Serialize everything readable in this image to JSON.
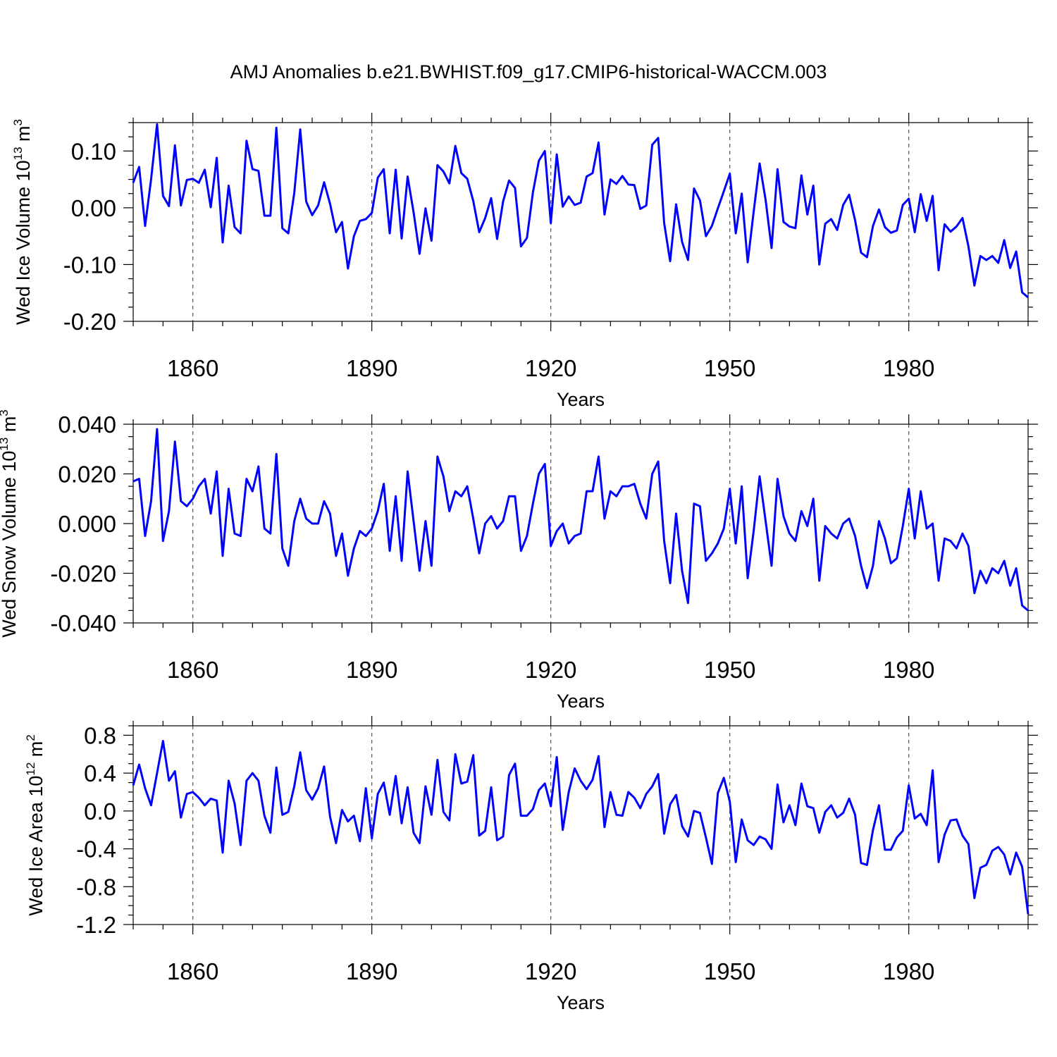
{
  "title": "AMJ Anomalies b.e21.BWHIST.f09_g17.CMIP6-historical-WACCM.003",
  "colors": {
    "line": "#0000ff",
    "axis": "#000000",
    "grid": "#555555"
  },
  "chart_data": [
    {
      "type": "line",
      "name": "ice-volume",
      "title": "",
      "xlabel": "Years",
      "ylabel": "Wed Ice Volume 10",
      "ylabel_exp": "13",
      "ylabel_unit": "m",
      "ylabel_unit_exp": "3",
      "xlim": [
        1850,
        2000
      ],
      "ylim": [
        -0.2,
        0.15
      ],
      "x_ticks": [
        1860,
        1890,
        1920,
        1950,
        1980
      ],
      "x_tick_labels": [
        "1860",
        "1890",
        "1920",
        "1950",
        "1980"
      ],
      "y_ticks": [
        0.1,
        0.0,
        -0.1,
        -0.2
      ],
      "y_tick_labels": [
        "0.10",
        "0.00",
        "-0.10",
        "-0.20"
      ],
      "x_start": 1850,
      "values": [
        0.044,
        0.072,
        -0.032,
        0.05,
        0.147,
        0.021,
        0.003,
        0.11,
        0.004,
        0.049,
        0.051,
        0.044,
        0.067,
        0.001,
        0.088,
        -0.061,
        0.039,
        -0.034,
        -0.045,
        0.118,
        0.068,
        0.065,
        -0.014,
        -0.014,
        0.141,
        -0.036,
        -0.045,
        0.026,
        0.138,
        0.011,
        -0.013,
        0.004,
        0.045,
        0.007,
        -0.043,
        -0.025,
        -0.107,
        -0.05,
        -0.023,
        -0.02,
        -0.009,
        0.053,
        0.068,
        -0.045,
        0.067,
        -0.054,
        0.055,
        -0.008,
        -0.081,
        -0.001,
        -0.058,
        0.075,
        0.064,
        0.043,
        0.109,
        0.061,
        0.051,
        0.012,
        -0.043,
        -0.018,
        0.017,
        -0.055,
        0.011,
        0.048,
        0.035,
        -0.068,
        -0.053,
        0.027,
        0.083,
        0.1,
        -0.027,
        0.094,
        0.002,
        0.02,
        0.005,
        0.009,
        0.055,
        0.061,
        0.115,
        -0.012,
        0.05,
        0.042,
        0.056,
        0.041,
        0.04,
        -0.002,
        0.004,
        0.111,
        0.123,
        -0.027,
        -0.094,
        0.006,
        -0.06,
        -0.092,
        0.034,
        0.013,
        -0.05,
        -0.032,
        -0.001,
        0.029,
        0.06,
        -0.045,
        0.025,
        -0.096,
        -0.007,
        0.078,
        0.014,
        -0.071,
        0.068,
        -0.025,
        -0.033,
        -0.036,
        0.057,
        -0.012,
        0.039,
        -0.1,
        -0.028,
        -0.02,
        -0.039,
        0.005,
        0.023,
        -0.022,
        -0.079,
        -0.087,
        -0.032,
        -0.003,
        -0.034,
        -0.044,
        -0.04,
        0.005,
        0.016,
        -0.043,
        0.024,
        -0.023,
        0.021,
        -0.11,
        -0.029,
        -0.042,
        -0.033,
        -0.018,
        -0.068,
        -0.137,
        -0.085,
        -0.092,
        -0.085,
        -0.097,
        -0.057,
        -0.106,
        -0.077,
        -0.149,
        -0.158
      ]
    },
    {
      "type": "line",
      "name": "snow-volume",
      "title": "",
      "xlabel": "Years",
      "ylabel": "Wed Snow Volume 10",
      "ylabel_exp": "13",
      "ylabel_unit": "m",
      "ylabel_unit_exp": "3",
      "xlim": [
        1850,
        2000
      ],
      "ylim": [
        -0.04,
        0.04
      ],
      "x_ticks": [
        1860,
        1890,
        1920,
        1950,
        1980
      ],
      "x_tick_labels": [
        "1860",
        "1890",
        "1920",
        "1950",
        "1980"
      ],
      "y_ticks": [
        0.04,
        0.02,
        0.0,
        -0.02,
        -0.04
      ],
      "y_tick_labels": [
        "0.040",
        "0.020",
        "0.000",
        "-0.020",
        "-0.040"
      ],
      "x_start": 1850,
      "values": [
        0.017,
        0.018,
        -0.005,
        0.009,
        0.038,
        -0.007,
        0.005,
        0.033,
        0.009,
        0.007,
        0.01,
        0.015,
        0.018,
        0.004,
        0.021,
        -0.013,
        0.014,
        -0.004,
        -0.005,
        0.018,
        0.013,
        0.023,
        -0.002,
        -0.004,
        0.028,
        -0.01,
        -0.017,
        0.001,
        0.01,
        0.002,
        0.0,
        0.0,
        0.009,
        0.004,
        -0.013,
        -0.004,
        -0.021,
        -0.01,
        -0.003,
        -0.005,
        -0.002,
        0.005,
        0.016,
        -0.011,
        0.011,
        -0.015,
        0.021,
        0.001,
        -0.019,
        0.001,
        -0.017,
        0.027,
        0.019,
        0.005,
        0.013,
        0.011,
        0.015,
        0.002,
        -0.012,
        0.0,
        0.003,
        -0.002,
        0.001,
        0.011,
        0.011,
        -0.011,
        -0.005,
        0.008,
        0.02,
        0.024,
        -0.009,
        -0.003,
        0.0,
        -0.008,
        -0.005,
        -0.004,
        0.013,
        0.013,
        0.027,
        0.002,
        0.013,
        0.011,
        0.015,
        0.015,
        0.016,
        0.008,
        0.002,
        0.02,
        0.025,
        -0.007,
        -0.024,
        0.004,
        -0.019,
        -0.032,
        0.008,
        0.007,
        -0.015,
        -0.012,
        -0.008,
        -0.002,
        0.014,
        -0.008,
        0.015,
        -0.022,
        -0.003,
        0.019,
        0.001,
        -0.017,
        0.018,
        0.003,
        -0.004,
        -0.007,
        0.005,
        -0.001,
        0.01,
        -0.023,
        -0.001,
        -0.004,
        -0.006,
        0.0,
        0.002,
        -0.005,
        -0.017,
        -0.026,
        -0.017,
        0.001,
        -0.006,
        -0.016,
        -0.014,
        -0.001,
        0.014,
        -0.006,
        0.013,
        -0.002,
        0.0,
        -0.023,
        -0.006,
        -0.007,
        -0.01,
        -0.004,
        -0.009,
        -0.028,
        -0.019,
        -0.024,
        -0.018,
        -0.02,
        -0.015,
        -0.025,
        -0.018,
        -0.033,
        -0.035
      ]
    },
    {
      "type": "line",
      "name": "ice-area",
      "title": "",
      "xlabel": "Years",
      "ylabel": "Wed Ice Area 10",
      "ylabel_exp": "12",
      "ylabel_unit": "m",
      "ylabel_unit_exp": "2",
      "xlim": [
        1850,
        2000
      ],
      "ylim": [
        -1.2,
        0.9
      ],
      "x_ticks": [
        1860,
        1890,
        1920,
        1950,
        1980
      ],
      "x_tick_labels": [
        "1860",
        "1890",
        "1920",
        "1950",
        "1980"
      ],
      "y_ticks": [
        0.8,
        0.4,
        0.0,
        -0.4,
        -0.8,
        -1.2
      ],
      "y_tick_labels": [
        "0.8",
        "0.4",
        "0.0",
        "-0.4",
        "-0.8",
        "-1.2"
      ],
      "x_start": 1850,
      "values": [
        0.27,
        0.49,
        0.24,
        0.06,
        0.4,
        0.74,
        0.32,
        0.42,
        -0.07,
        0.18,
        0.2,
        0.14,
        0.06,
        0.13,
        0.11,
        -0.44,
        0.32,
        0.08,
        -0.36,
        0.32,
        0.4,
        0.32,
        -0.05,
        -0.23,
        0.46,
        -0.04,
        -0.01,
        0.26,
        0.62,
        0.22,
        0.12,
        0.24,
        0.47,
        -0.06,
        -0.34,
        0.01,
        -0.11,
        -0.05,
        -0.32,
        0.24,
        -0.29,
        0.18,
        0.3,
        -0.04,
        0.37,
        -0.13,
        0.25,
        -0.23,
        -0.34,
        0.26,
        -0.04,
        0.54,
        -0.01,
        -0.1,
        0.6,
        0.29,
        0.31,
        0.59,
        -0.26,
        -0.21,
        0.25,
        -0.31,
        -0.27,
        0.38,
        0.5,
        -0.05,
        -0.05,
        0.02,
        0.22,
        0.29,
        0.05,
        0.57,
        -0.2,
        0.2,
        0.45,
        0.32,
        0.23,
        0.33,
        0.58,
        -0.17,
        0.2,
        -0.04,
        -0.05,
        0.2,
        0.14,
        0.03,
        0.18,
        0.26,
        0.39,
        -0.24,
        0.07,
        0.17,
        -0.16,
        -0.27,
        0.0,
        -0.02,
        -0.28,
        -0.56,
        0.19,
        0.35,
        0.1,
        -0.54,
        -0.09,
        -0.31,
        -0.36,
        -0.27,
        -0.3,
        -0.4,
        0.28,
        -0.12,
        0.06,
        -0.15,
        0.29,
        0.05,
        0.03,
        -0.23,
        -0.01,
        0.06,
        -0.07,
        -0.02,
        0.13,
        -0.04,
        -0.55,
        -0.57,
        -0.2,
        0.06,
        -0.41,
        -0.41,
        -0.28,
        -0.21,
        0.27,
        -0.08,
        -0.03,
        -0.15,
        0.43,
        -0.54,
        -0.25,
        -0.1,
        -0.09,
        -0.26,
        -0.35,
        -0.92,
        -0.6,
        -0.57,
        -0.42,
        -0.38,
        -0.46,
        -0.67,
        -0.44,
        -0.59,
        -1.09
      ]
    }
  ]
}
